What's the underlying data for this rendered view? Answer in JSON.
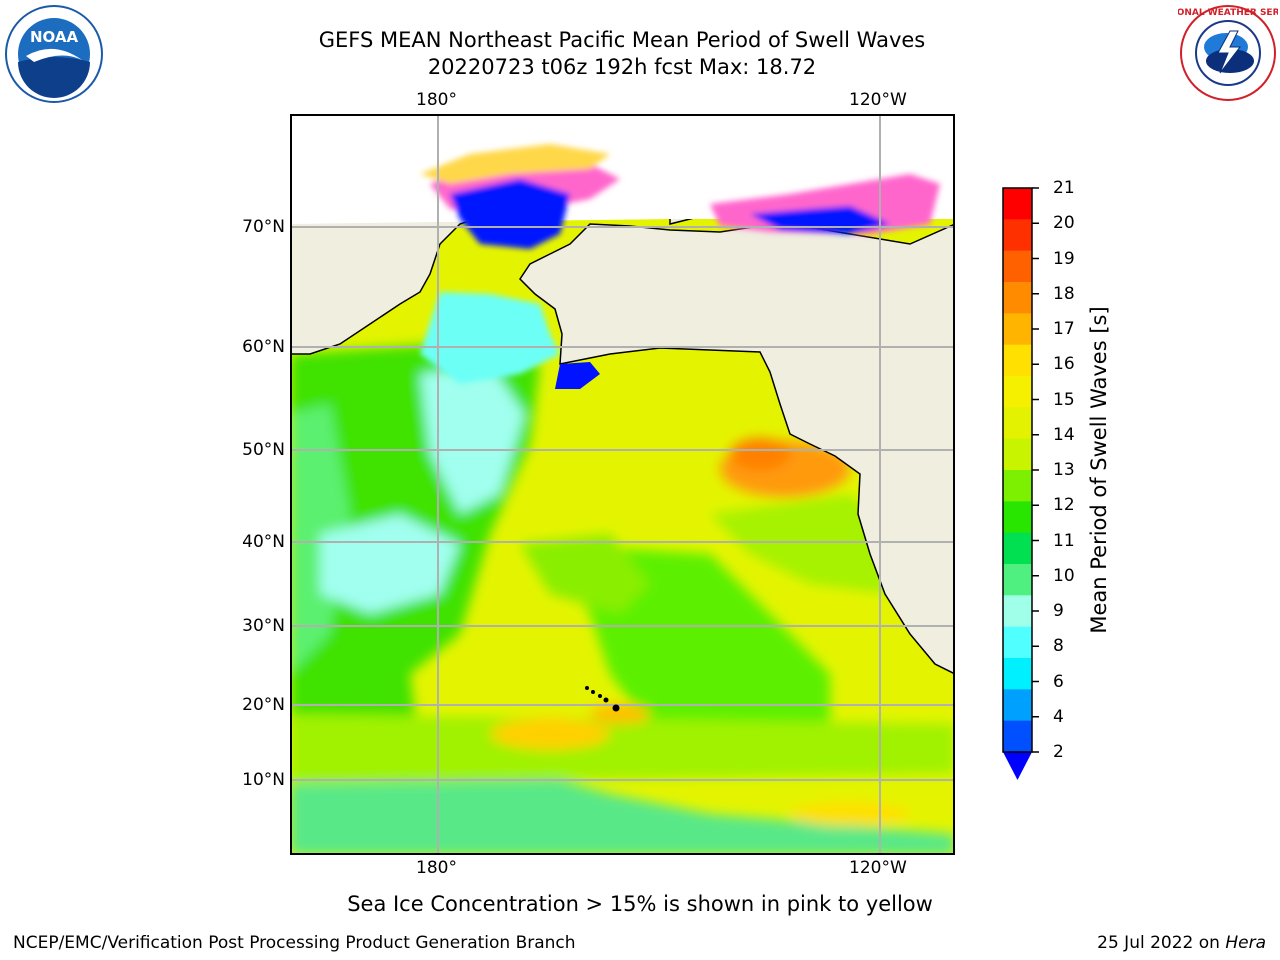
{
  "title": {
    "line1": "GEFS MEAN Northeast Pacific Mean Period of Swell Waves",
    "line2": "20220723 t06z 192h fcst   Max: 18.72"
  },
  "map": {
    "top_labels": [
      "180°",
      "120°W"
    ],
    "bottom_labels": [
      "180°",
      "120°W"
    ],
    "lat_labels": [
      "70°N",
      "60°N",
      "50°N",
      "40°N",
      "30°N",
      "20°N",
      "10°N"
    ],
    "colors": {
      "land": "#efeedf",
      "coast": "#000000",
      "grid": "#b0b0b0",
      "ice_blue": "#0012ff",
      "ice_pink": "#ff66cc",
      "ice_yellow": "#ffd84a"
    }
  },
  "colorbar": {
    "label": "Mean Period of Swell Waves [s]",
    "ticks": [
      "21",
      "20",
      "19",
      "18",
      "17",
      "16",
      "15",
      "14",
      "13",
      "12",
      "11",
      "10",
      "9",
      "8",
      "6",
      "4",
      "2"
    ],
    "colors": [
      "#ff0000",
      "#ff3000",
      "#ff6000",
      "#ff8c00",
      "#ffb400",
      "#ffe000",
      "#f4f000",
      "#e2f200",
      "#c8f400",
      "#7cf000",
      "#28e600",
      "#00e050",
      "#50f080",
      "#a0ffe8",
      "#50ffff",
      "#00f0ff",
      "#00a0ff",
      "#0050ff"
    ],
    "extend_color": "#0000ff"
  },
  "footnote": "Sea Ice Concentration > 15% is shown in pink to yellow",
  "credit_left": "NCEP/EMC/Verification Post Processing Product Generation Branch",
  "credit_right_date": "25 Jul 2022 on",
  "credit_right_host": "Hera",
  "logos": {
    "noaa_text": "NOAA",
    "nws_text": "NATIONAL WEATHER SERVICE"
  }
}
